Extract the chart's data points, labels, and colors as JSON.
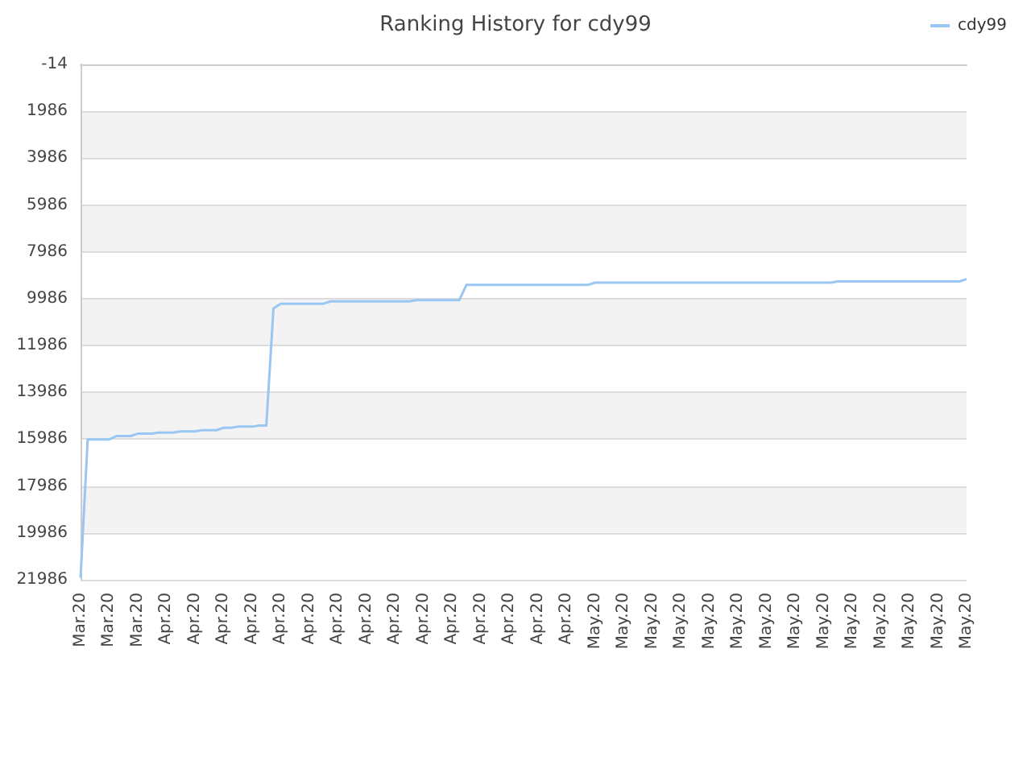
{
  "chart_data": {
    "type": "line",
    "title": "Ranking History for cdy99",
    "categories": [
      "Mar.20",
      null,
      null,
      null,
      "Mar.20",
      null,
      null,
      null,
      "Mar.20",
      null,
      null,
      null,
      "Apr.20",
      null,
      null,
      null,
      "Apr.20",
      null,
      null,
      null,
      "Apr.20",
      null,
      null,
      null,
      "Apr.20",
      null,
      null,
      null,
      "Apr.20",
      null,
      null,
      null,
      "Apr.20",
      null,
      null,
      null,
      "Apr.20",
      null,
      null,
      null,
      "Apr.20",
      null,
      null,
      null,
      "Apr.20",
      null,
      null,
      null,
      "Apr.20",
      null,
      null,
      null,
      "Apr.20",
      null,
      null,
      null,
      "Apr.20",
      null,
      null,
      null,
      "Apr.20",
      null,
      null,
      null,
      "Apr.20",
      null,
      null,
      null,
      "Apr.20",
      null,
      null,
      null,
      "May.20",
      null,
      null,
      null,
      "May.20",
      null,
      null,
      null,
      "May.20",
      null,
      null,
      null,
      "May.20",
      null,
      null,
      null,
      "May.20",
      null,
      null,
      null,
      "May.20",
      null,
      null,
      null,
      "May.20",
      null,
      null,
      null,
      "May.20",
      null,
      null,
      null,
      "May.20",
      null,
      null,
      null,
      "May.20",
      null,
      null,
      null,
      "May.20",
      null,
      null,
      null,
      "May.20",
      null,
      null,
      null,
      "May.20",
      null,
      null,
      null,
      "May.20"
    ],
    "series": [
      {
        "name": "cdy99",
        "color": "#99c6f2",
        "values": [
          21900,
          16000,
          16000,
          16000,
          16000,
          15850,
          15850,
          15850,
          15750,
          15750,
          15750,
          15700,
          15700,
          15700,
          15650,
          15650,
          15650,
          15600,
          15600,
          15600,
          15500,
          15500,
          15450,
          15450,
          15450,
          15400,
          15400,
          10400,
          10200,
          10200,
          10200,
          10200,
          10200,
          10200,
          10200,
          10100,
          10100,
          10100,
          10100,
          10100,
          10100,
          10100,
          10100,
          10100,
          10100,
          10100,
          10100,
          10050,
          10050,
          10050,
          10050,
          10050,
          10050,
          10050,
          9400,
          9400,
          9400,
          9400,
          9400,
          9400,
          9400,
          9400,
          9400,
          9400,
          9400,
          9400,
          9400,
          9400,
          9400,
          9400,
          9400,
          9400,
          9300,
          9300,
          9300,
          9300,
          9300,
          9300,
          9300,
          9300,
          9300,
          9300,
          9300,
          9300,
          9300,
          9300,
          9300,
          9300,
          9300,
          9300,
          9300,
          9300,
          9300,
          9300,
          9300,
          9300,
          9300,
          9300,
          9300,
          9300,
          9300,
          9300,
          9300,
          9300,
          9300,
          9300,
          9250,
          9250,
          9250,
          9250,
          9250,
          9250,
          9250,
          9250,
          9250,
          9250,
          9250,
          9250,
          9250,
          9250,
          9250,
          9250,
          9250,
          9250,
          9150
        ]
      }
    ],
    "ylim": [
      21986,
      -14
    ],
    "yticks": [
      -14,
      1986,
      3986,
      5986,
      7986,
      9986,
      11986,
      13986,
      15986,
      17986,
      19986,
      21986
    ],
    "grid": "y",
    "legend": "top right",
    "marker": "none",
    "line_style": "solid"
  }
}
